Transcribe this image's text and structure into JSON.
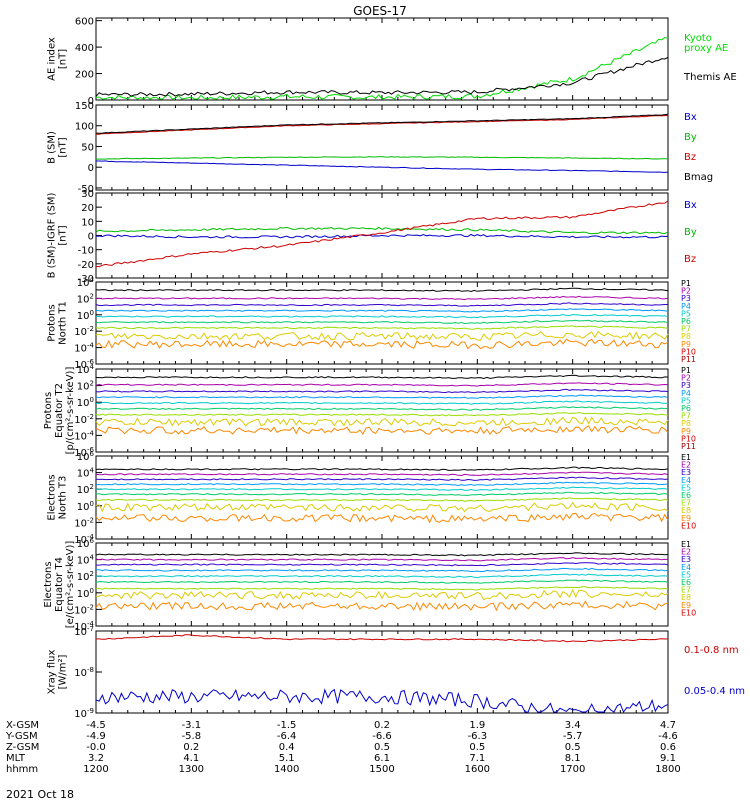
{
  "title": "GOES-17",
  "date": "2021 Oct 18",
  "panels": [
    {
      "id": "ae",
      "ylabel": [
        "AE index",
        "[nT]"
      ],
      "yticks": [
        "600",
        "400",
        "200",
        "0"
      ],
      "ylim": [
        0,
        620
      ],
      "legend": [
        {
          "text": "Kyoto",
          "color": "#00dd00"
        },
        {
          "text": "proxy AE",
          "color": "#00dd00"
        },
        {
          "text": "Themis AE",
          "color": "#000000"
        }
      ]
    },
    {
      "id": "bsm",
      "ylabel": [
        "B (SM)",
        "[nT]"
      ],
      "yticks": [
        "150",
        "100",
        "50",
        "0",
        "-50"
      ],
      "ylim": [
        -55,
        150
      ],
      "legend": [
        {
          "text": "Bx",
          "color": "#0000cc"
        },
        {
          "text": "By",
          "color": "#00bb00"
        },
        {
          "text": "Bz",
          "color": "#cc0000"
        },
        {
          "text": "Bmag",
          "color": "#000000"
        }
      ]
    },
    {
      "id": "bigrf",
      "ylabel": [
        "B (SM)-IGRF (SM)",
        "[nT]"
      ],
      "yticks": [
        "30",
        "20",
        "10",
        "0",
        "-10",
        "-20",
        "-30"
      ],
      "ylim": [
        -30,
        30
      ],
      "legend": [
        {
          "text": "Bx",
          "color": "#0000cc"
        },
        {
          "text": "By",
          "color": "#00bb00"
        },
        {
          "text": "Bz",
          "color": "#cc0000"
        }
      ]
    },
    {
      "id": "protons-north",
      "ylabel": [
        "Protons",
        "North T1"
      ],
      "yticks": [
        "10^4",
        "10^2",
        "10^0",
        "10^-2",
        "10^-4",
        "10^-6"
      ],
      "ylim": [
        -6,
        4
      ],
      "legend": [
        "P1",
        "P2",
        "P3",
        "P4",
        "P5",
        "P6",
        "P7",
        "P8",
        "P9",
        "P10",
        "P11"
      ]
    },
    {
      "id": "protons-equator",
      "ylabel": [
        "Protons",
        "Equator T2",
        "[p/(cm²-s-sr-keV)]"
      ],
      "yticks": [
        "10^4",
        "10^2",
        "10^0",
        "10^-2",
        "10^-4",
        "10^-6"
      ],
      "ylim": [
        -6,
        4
      ],
      "legend": [
        "P1",
        "P2",
        "P3",
        "P4",
        "P5",
        "P6",
        "P7",
        "P8",
        "P9",
        "P10",
        "P11"
      ]
    },
    {
      "id": "electrons-north",
      "ylabel": [
        "Electrons",
        "North T3"
      ],
      "yticks": [
        "10^6",
        "10^4",
        "10^2",
        "10^0",
        "10^-2",
        "10^-4"
      ],
      "ylim": [
        -4,
        6
      ],
      "legend": [
        "E1",
        "E2",
        "E3",
        "E4",
        "E5",
        "E6",
        "E7",
        "E8",
        "E9",
        "E10"
      ]
    },
    {
      "id": "electrons-equator",
      "ylabel": [
        "Electrons",
        "Equator T4",
        "[e/(cm²-s-sr-keV)]"
      ],
      "yticks": [
        "10^6",
        "10^4",
        "10^2",
        "10^0",
        "10^-2",
        "10^-4"
      ],
      "ylim": [
        -4,
        6
      ],
      "legend": [
        "E1",
        "E2",
        "E3",
        "E4",
        "E5",
        "E6",
        "E7",
        "E8",
        "E9",
        "E10"
      ]
    },
    {
      "id": "xray",
      "ylabel": [
        "Xray flux",
        "[W/m²]"
      ],
      "yticks": [
        "10^-7",
        "10^-8",
        "10^-9"
      ],
      "ylim": [
        -9,
        -7
      ],
      "legend": [
        {
          "text": "0.1-0.8 nm",
          "color": "#cc0000"
        },
        {
          "text": "0.05-0.4 nm",
          "color": "#0000cc"
        }
      ]
    }
  ],
  "flux_colors": [
    "#000000",
    "#aa00aa",
    "#3300cc",
    "#0099ff",
    "#00cccc",
    "#00cc66",
    "#99dd00",
    "#ddcc00",
    "#ff8800",
    "#dd0000",
    "#aa0000"
  ],
  "xaxis": {
    "row_labels": [
      "X-GSM",
      "Y-GSM",
      "Z-GSM",
      "MLT",
      "hhmm"
    ],
    "columns": [
      [
        "-4.5",
        "-4.9",
        "-0.0",
        "3.2",
        "1200"
      ],
      [
        "-3.1",
        "-5.8",
        "0.2",
        "4.1",
        "1300"
      ],
      [
        "-1.5",
        "-6.4",
        "0.4",
        "5.1",
        "1400"
      ],
      [
        "0.2",
        "-6.6",
        "0.5",
        "6.1",
        "1500"
      ],
      [
        "1.9",
        "-6.3",
        "0.5",
        "7.1",
        "1600"
      ],
      [
        "3.4",
        "-5.7",
        "0.5",
        "8.1",
        "1700"
      ],
      [
        "4.7",
        "-4.6",
        "0.6",
        "9.1",
        "1800"
      ]
    ]
  },
  "chart_data": [
    {
      "type": "line",
      "panel": "AE index",
      "x": [
        "1200",
        "1300",
        "1400",
        "1500",
        "1600",
        "1700",
        "1800"
      ],
      "series": [
        {
          "name": "Kyoto proxy AE",
          "values": [
            20,
            15,
            25,
            20,
            30,
            160,
            470
          ]
        },
        {
          "name": "Themis AE",
          "values": [
            40,
            45,
            60,
            55,
            60,
            130,
            330
          ]
        }
      ],
      "ylabel": "AE index [nT]",
      "ylim": [
        0,
        620
      ]
    },
    {
      "type": "line",
      "panel": "B (SM)",
      "x": [
        "1200",
        "1300",
        "1400",
        "1500",
        "1600",
        "1700",
        "1800"
      ],
      "series": [
        {
          "name": "Bx",
          "values": [
            15,
            10,
            5,
            0,
            -5,
            -8,
            -12
          ]
        },
        {
          "name": "By",
          "values": [
            20,
            22,
            24,
            25,
            24,
            22,
            20
          ]
        },
        {
          "name": "Bz",
          "values": [
            80,
            90,
            100,
            105,
            110,
            115,
            125
          ]
        },
        {
          "name": "Bmag",
          "values": [
            82,
            92,
            102,
            107,
            112,
            117,
            127
          ]
        }
      ],
      "ylabel": "B (SM) [nT]",
      "ylim": [
        -55,
        150
      ]
    },
    {
      "type": "line",
      "panel": "B (SM)-IGRF (SM)",
      "x": [
        "1200",
        "1300",
        "1400",
        "1500",
        "1600",
        "1700",
        "1800"
      ],
      "series": [
        {
          "name": "Bx",
          "values": [
            0,
            -1,
            -1,
            0,
            0,
            -1,
            -1
          ]
        },
        {
          "name": "By",
          "values": [
            3,
            4,
            5,
            5,
            4,
            2,
            2
          ]
        },
        {
          "name": "Bz",
          "values": [
            -22,
            -13,
            -7,
            2,
            12,
            13,
            24
          ]
        }
      ],
      "ylabel": "B (SM)-IGRF (SM) [nT]",
      "ylim": [
        -30,
        30
      ]
    },
    {
      "type": "line",
      "panel": "Xray flux",
      "x": [
        "1200",
        "1300",
        "1400",
        "1500",
        "1600",
        "1700",
        "1800"
      ],
      "series": [
        {
          "name": "0.1-0.8 nm",
          "values": [
            -7.2,
            -7.1,
            -7.2,
            -7.2,
            -7.2,
            -7.25,
            -7.2
          ]
        },
        {
          "name": "0.05-0.4 nm",
          "values": [
            -8.6,
            -8.6,
            -8.6,
            -8.6,
            -8.7,
            -9.0,
            -8.8
          ]
        }
      ],
      "ylabel": "Xray flux [W/m²]",
      "ylim": [
        -9,
        -7
      ]
    }
  ]
}
